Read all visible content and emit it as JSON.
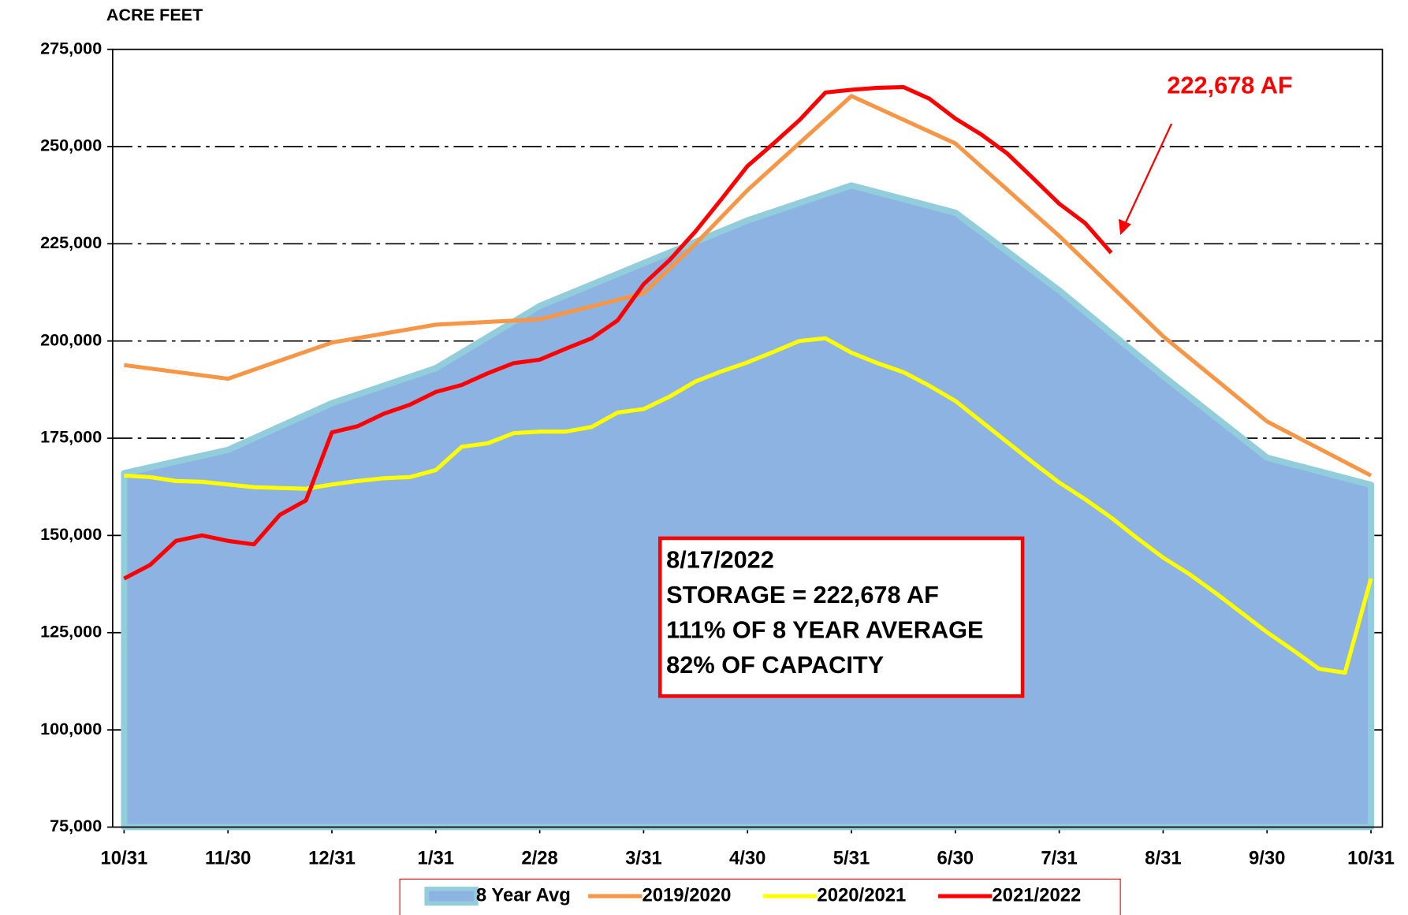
{
  "chart_data": {
    "type": "line",
    "y_axis_label": "ACRE FEET",
    "xlim": [
      -0.11,
      12.11
    ],
    "xticks": [
      {
        "value": 0,
        "label": "10/31"
      },
      {
        "value": 1,
        "label": "11/30"
      },
      {
        "value": 2,
        "label": "12/31"
      },
      {
        "value": 3,
        "label": "1/31"
      },
      {
        "value": 4,
        "label": "2/28"
      },
      {
        "value": 5,
        "label": "3/31"
      },
      {
        "value": 6,
        "label": "4/30"
      },
      {
        "value": 7,
        "label": "5/31"
      },
      {
        "value": 8,
        "label": "6/30"
      },
      {
        "value": 9,
        "label": "7/31"
      },
      {
        "value": 10,
        "label": "8/31"
      },
      {
        "value": 11,
        "label": "9/30"
      },
      {
        "value": 12,
        "label": "10/31"
      }
    ],
    "ylim": [
      75000,
      275000
    ],
    "yticks": [
      {
        "value": 75000,
        "label": "75,000"
      },
      {
        "value": 100000,
        "label": "100,000"
      },
      {
        "value": 125000,
        "label": "125,000"
      },
      {
        "value": 150000,
        "label": "150,000"
      },
      {
        "value": 175000,
        "label": "175,000"
      },
      {
        "value": 200000,
        "label": "200,000"
      },
      {
        "value": 225000,
        "label": "225,000"
      },
      {
        "value": 250000,
        "label": "250,000"
      },
      {
        "value": 275000,
        "label": "275,000"
      }
    ],
    "grid": true,
    "series": [
      {
        "name": "8 Year Avg",
        "color": "#92cddc",
        "fill": "#8db3e2",
        "x": [
          0,
          1,
          2,
          3,
          4,
          5,
          6,
          7,
          8,
          9,
          10,
          11,
          12
        ],
        "values": [
          166000,
          172000,
          184000,
          193000,
          209000,
          220000,
          231000,
          240000,
          233000,
          213000,
          191000,
          170000,
          163000
        ]
      },
      {
        "name": "2019/2020",
        "color": "#f79646",
        "x": [
          0,
          1,
          2,
          3,
          4,
          5,
          5.5,
          6,
          7,
          8,
          9,
          10,
          11,
          12
        ],
        "values": [
          193800,
          190300,
          199600,
          204200,
          205600,
          212250,
          225000,
          238800,
          263000,
          250800,
          227000,
          201200,
          179300,
          165400
        ]
      },
      {
        "name": "2020/2021",
        "color": "#ffff00",
        "x": [
          0,
          0.25,
          0.5,
          0.75,
          1,
          1.25,
          1.5,
          1.75,
          2,
          2.25,
          2.5,
          2.75,
          3,
          3.25,
          3.5,
          3.75,
          4,
          4.25,
          4.5,
          4.75,
          5,
          5.25,
          5.5,
          5.75,
          6,
          6.25,
          6.5,
          6.75,
          7,
          7.25,
          7.5,
          7.75,
          8,
          8.25,
          8.5,
          8.75,
          9,
          9.25,
          9.5,
          9.75,
          10,
          10.25,
          10.5,
          10.75,
          11,
          11.25,
          11.5,
          11.75,
          12
        ],
        "values": [
          165400,
          165000,
          164000,
          163800,
          163100,
          162400,
          162200,
          162000,
          163100,
          164000,
          164700,
          165000,
          166800,
          172800,
          173700,
          176300,
          176700,
          176700,
          177900,
          181600,
          182500,
          185700,
          189600,
          192200,
          194500,
          197200,
          200000,
          200700,
          197000,
          194300,
          192000,
          188500,
          184600,
          179300,
          174000,
          168700,
          163600,
          159300,
          154600,
          149300,
          144300,
          140100,
          135300,
          130200,
          125100,
          120500,
          115700,
          114700,
          138900
        ]
      },
      {
        "name": "2021/2022",
        "color": "#ff0000",
        "x": [
          0,
          0.25,
          0.5,
          0.75,
          1,
          1.25,
          1.5,
          1.75,
          2,
          2.25,
          2.5,
          2.75,
          3,
          3.25,
          3.5,
          3.75,
          4,
          4.25,
          4.5,
          4.75,
          5,
          5.25,
          5.5,
          5.75,
          6,
          6.25,
          6.5,
          6.75,
          7,
          7.25,
          7.5,
          7.75,
          8,
          8.25,
          8.5,
          8.75,
          9,
          9.25,
          9.5
        ],
        "values": [
          138900,
          142400,
          148600,
          150000,
          148600,
          147700,
          155300,
          159000,
          176500,
          178100,
          181300,
          183600,
          186900,
          188700,
          191700,
          194300,
          195200,
          198000,
          200700,
          205300,
          214600,
          220800,
          228200,
          236500,
          245000,
          250800,
          256800,
          263900,
          264600,
          265100,
          265300,
          262300,
          257200,
          253100,
          248200,
          241800,
          235300,
          230300,
          222678
        ]
      }
    ],
    "annotation": "222,678 AF",
    "info_box": [
      "8/17/2022",
      "STORAGE = 222,678 AF",
      "111% OF 8 YEAR AVERAGE",
      "82% OF CAPACITY"
    ]
  }
}
